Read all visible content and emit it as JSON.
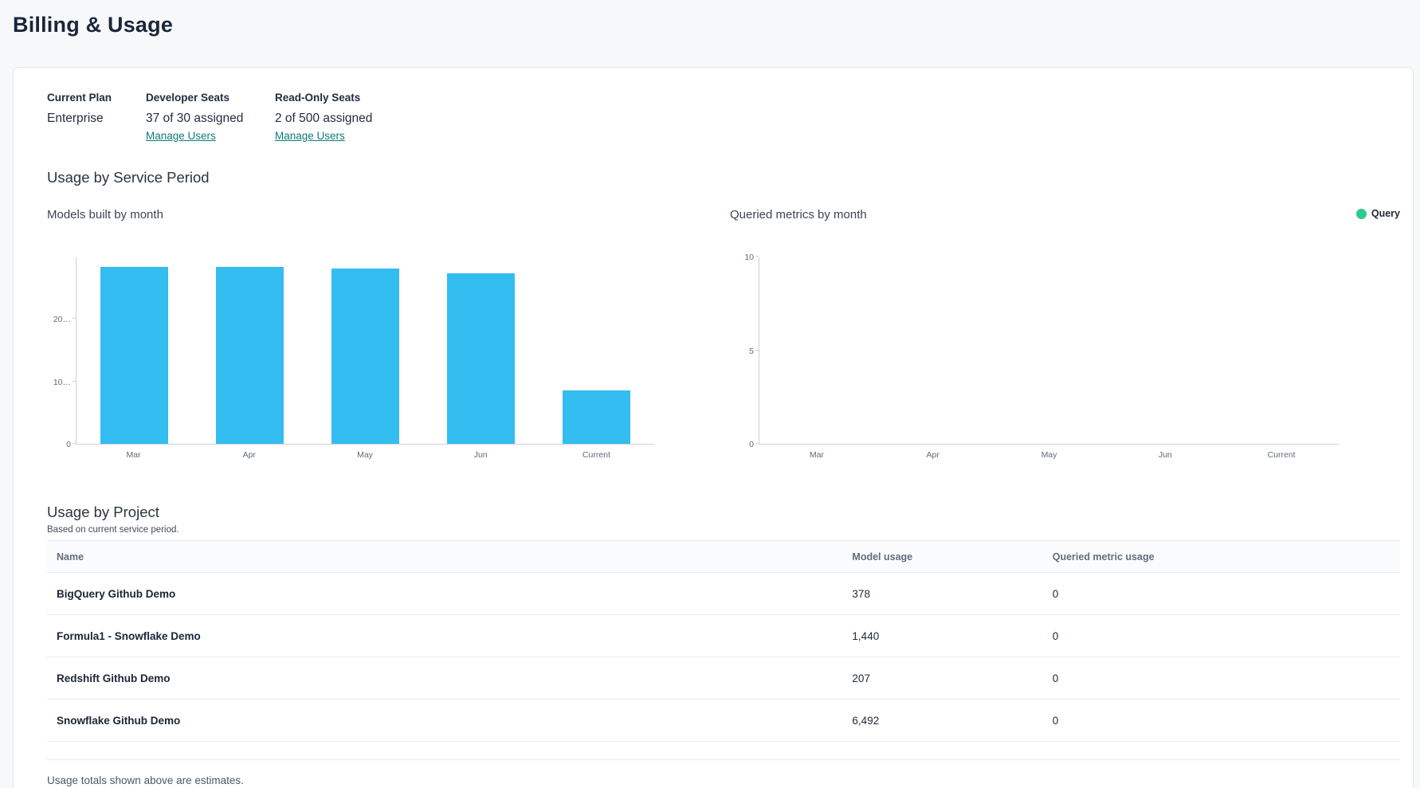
{
  "page": {
    "title": "Billing & Usage"
  },
  "plan": {
    "columns": [
      {
        "label": "Current Plan",
        "value": "Enterprise"
      },
      {
        "label": "Developer Seats",
        "value": "37 of 30 assigned",
        "link": "Manage Users"
      },
      {
        "label": "Read-Only Seats",
        "value": "2 of 500 assigned",
        "link": "Manage Users"
      }
    ]
  },
  "sections": {
    "service_period_title": "Usage by Service Period",
    "project_title": "Usage by Project",
    "project_subtitle": "Based on current service period."
  },
  "chart_data": [
    {
      "type": "bar",
      "title": "Models built by month",
      "categories": [
        "Mar",
        "Apr",
        "May",
        "Jun",
        "Current"
      ],
      "series": [
        {
          "name": "Models built",
          "values": [
            28400,
            28300,
            28100,
            27300,
            8500
          ]
        }
      ],
      "ylim": [
        0,
        30000
      ],
      "yticks": [
        {
          "value": 0,
          "label": "0"
        },
        {
          "value": 10000,
          "label": "10…"
        },
        {
          "value": 20000,
          "label": "20…"
        }
      ],
      "bar_color": "#33bdf0",
      "grid": false,
      "legend_position": "none"
    },
    {
      "type": "bar",
      "title": "Queried metrics by month",
      "categories": [
        "Mar",
        "Apr",
        "May",
        "Jun",
        "Current"
      ],
      "series": [
        {
          "name": "Query",
          "values": [
            0,
            0,
            0,
            0,
            0
          ]
        }
      ],
      "ylim": [
        0,
        10
      ],
      "yticks": [
        {
          "value": 0,
          "label": "0"
        },
        {
          "value": 5,
          "label": "5"
        },
        {
          "value": 10,
          "label": "10"
        }
      ],
      "bar_color": "#2dcb8e",
      "grid": false,
      "legend_position": "top-right",
      "legend": {
        "label": "Query",
        "color": "#2dcb8e"
      }
    }
  ],
  "table": {
    "columns": [
      "Name",
      "Model usage",
      "Queried metric usage"
    ],
    "rows": [
      {
        "name": "BigQuery Github Demo",
        "model_usage": "378",
        "queried_metric_usage": "0"
      },
      {
        "name": "Formula1 - Snowflake Demo",
        "model_usage": "1,440",
        "queried_metric_usage": "0"
      },
      {
        "name": "Redshift Github Demo",
        "model_usage": "207",
        "queried_metric_usage": "0"
      },
      {
        "name": "Snowflake Github Demo",
        "model_usage": "6,492",
        "queried_metric_usage": "0"
      }
    ]
  },
  "footnote": "Usage totals shown above are estimates.",
  "colors": {
    "link": "#0d7d74",
    "bar_blue": "#33bdf0",
    "legend_green": "#2dcb8e",
    "page_bg": "#f7f8fa"
  }
}
